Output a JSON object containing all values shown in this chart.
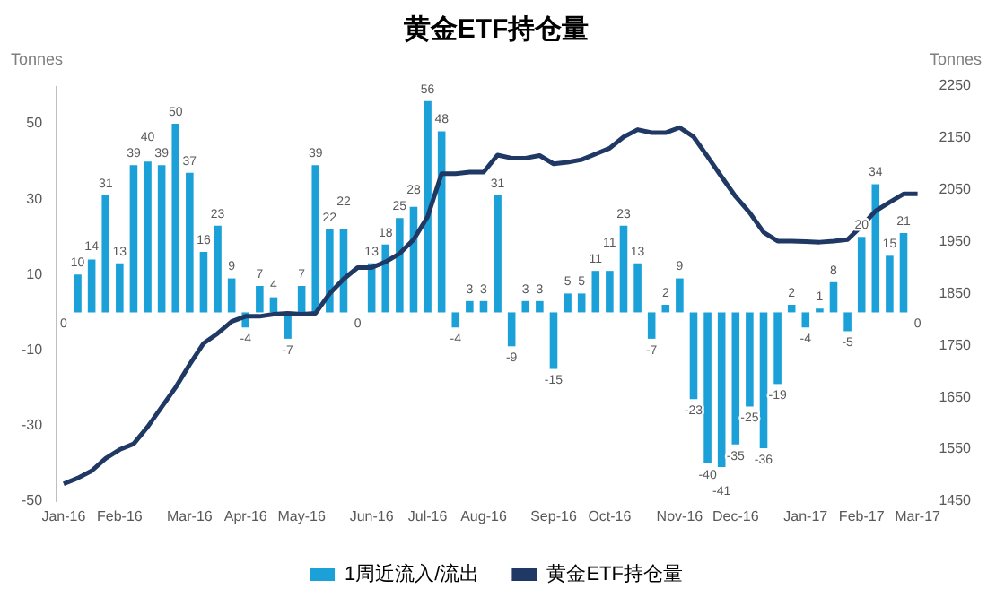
{
  "chart_data": {
    "type": "bar",
    "title": "黄金ETF持仓量",
    "ylabel": "Tonnes",
    "y2label": "Tonnes",
    "categories": [
      "Jan-16",
      null,
      null,
      null,
      "Feb-16",
      null,
      null,
      null,
      null,
      "Mar-16",
      null,
      null,
      null,
      "Apr-16",
      null,
      null,
      null,
      "May-16",
      null,
      null,
      null,
      null,
      "Jun-16",
      null,
      null,
      null,
      "Jul-16",
      null,
      null,
      null,
      "Aug-16",
      null,
      null,
      null,
      null,
      "Sep-16",
      null,
      null,
      null,
      "Oct-16",
      null,
      null,
      null,
      null,
      "Nov-16",
      null,
      null,
      null,
      "Dec-16",
      null,
      null,
      null,
      null,
      "Jan-17",
      null,
      null,
      null,
      "Feb-17",
      null,
      null,
      null,
      "Mar-17"
    ],
    "series": [
      {
        "name": "1周近流入/流出",
        "color": "#1ba1d8",
        "values": [
          0,
          10,
          14,
          31,
          13,
          39,
          40,
          39,
          50,
          37,
          16,
          23,
          9,
          -4,
          7,
          4,
          -7,
          7,
          39,
          22,
          22,
          0,
          13,
          18,
          25,
          28,
          56,
          48,
          -4,
          3,
          3,
          31,
          -9,
          3,
          3,
          -15,
          5,
          5,
          11,
          11,
          23,
          13,
          -7,
          2,
          9,
          -23,
          -40,
          -41,
          -35,
          -25,
          -36,
          -19,
          2,
          -4,
          1,
          8,
          -5,
          20,
          34,
          15,
          21,
          0
        ],
        "value_labels": [
          "0",
          "10",
          "14",
          "31",
          "13",
          "39",
          "40",
          "39",
          "50",
          "37",
          "16",
          "23",
          "9",
          "-4",
          "7",
          "4",
          "-7",
          "7",
          "39",
          "22",
          "22",
          "0",
          "13",
          "18",
          "25",
          "28",
          "56",
          "48",
          "-4",
          "3",
          "3",
          "31",
          "-9",
          "3",
          "3",
          "-15",
          "5",
          "5",
          "11",
          "11",
          "23",
          "13",
          "-7",
          "2",
          "9",
          "-23",
          "-40",
          "-41",
          "-35",
          "-25",
          "-36",
          "-19",
          "2",
          "-4",
          "1",
          "8",
          "-5",
          "20",
          "34",
          "15",
          "21",
          "0"
        ]
      },
      {
        "name": "黄金ETF持仓量",
        "type": "line",
        "axis": "y2",
        "color": "#1f3864",
        "values": [
          1483,
          1494,
          1508,
          1532,
          1549,
          1560,
          1593,
          1631,
          1669,
          1713,
          1754,
          1773,
          1796,
          1806,
          1806,
          1810,
          1812,
          1810,
          1812,
          1850,
          1878,
          1900,
          1900,
          1911,
          1927,
          1954,
          1998,
          2081,
          2081,
          2084,
          2084,
          2117,
          2111,
          2111,
          2116,
          2100,
          2103,
          2108,
          2119,
          2130,
          2152,
          2166,
          2160,
          2160,
          2170,
          2152,
          2114,
          2075,
          2037,
          2006,
          1968,
          1951,
          1951,
          1950,
          1949,
          1951,
          1954,
          1980,
          2009,
          2026,
          2042,
          2042
        ]
      }
    ],
    "ylim": [
      -50,
      60
    ],
    "yticks": [
      -50,
      -30,
      -10,
      10,
      30,
      50
    ],
    "y2lim": [
      1450,
      2250
    ],
    "y2ticks": [
      1450,
      1550,
      1650,
      1750,
      1850,
      1950,
      2050,
      2150,
      2250
    ],
    "grid": false,
    "legend": "bottom",
    "marker": "none",
    "line_style": "solid"
  }
}
